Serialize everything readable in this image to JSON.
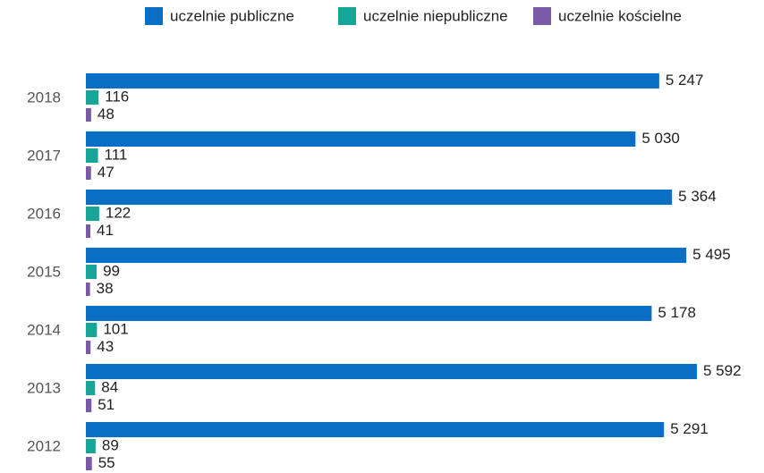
{
  "chart_data": {
    "type": "hbar",
    "categories": [
      "2018",
      "2017",
      "2016",
      "2015",
      "2014",
      "2013",
      "2012"
    ],
    "series": [
      {
        "name": "uczelnie publiczne",
        "color": "#0a6ec4",
        "values": [
          5247,
          5030,
          5364,
          5495,
          5178,
          5592,
          5291
        ],
        "value_labels": [
          "5 247",
          "5 030",
          "5 364",
          "5 495",
          "5 178",
          "5 592",
          "5 291"
        ]
      },
      {
        "name": "uczelnie niepubliczne",
        "color": "#17a598",
        "values": [
          116,
          111,
          122,
          99,
          101,
          84,
          89
        ]
      },
      {
        "name": "uczelnie kościelne",
        "color": "#7a5aa8",
        "values": [
          48,
          47,
          41,
          38,
          43,
          51,
          55
        ]
      }
    ],
    "legend": "top"
  }
}
